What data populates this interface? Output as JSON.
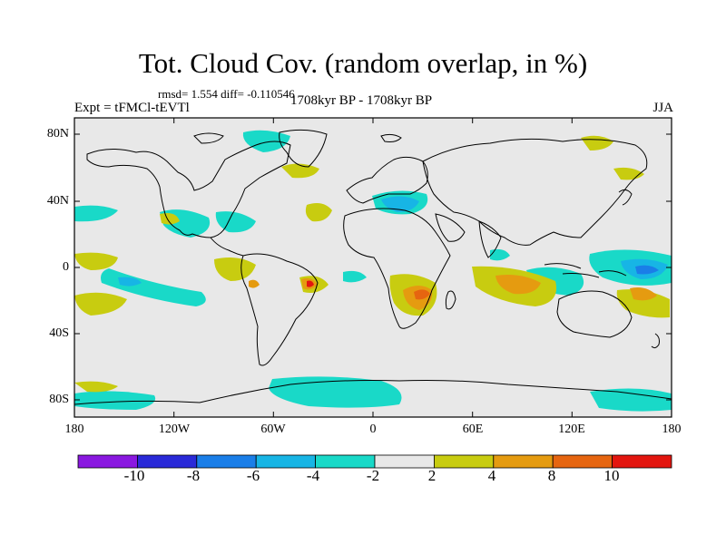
{
  "title": "Tot. Cloud Cov. (random overlap, in %)",
  "stats": "rmsd= 1.554 diff= -0.110546",
  "experiment": "Expt = tFMCl-tEVTl",
  "period": "1708kyr BP - 1708kyr BP",
  "season": "JJA",
  "lat_ticks": [
    "80N",
    "40N",
    "0",
    "40S",
    "80S"
  ],
  "lon_ticks": [
    "180",
    "120W",
    "60W",
    "0",
    "60E",
    "120E",
    "180"
  ],
  "colorbar": {
    "labels": [
      "-10",
      "-8",
      "-6",
      "-4",
      "-2",
      "2",
      "4",
      "8",
      "10"
    ],
    "colors": [
      "#8a18e0",
      "#2a2ad8",
      "#1a7ee8",
      "#17b5e5",
      "#19d9c8",
      "#e8e8e8",
      "#c8cc10",
      "#e59b10",
      "#e66510",
      "#e3160f"
    ]
  },
  "map": {
    "background_color": "#e8e8e8",
    "coastline_color": "#000000",
    "lon_range": [
      -180,
      180
    ],
    "lat_range": [
      -90,
      90
    ]
  }
}
